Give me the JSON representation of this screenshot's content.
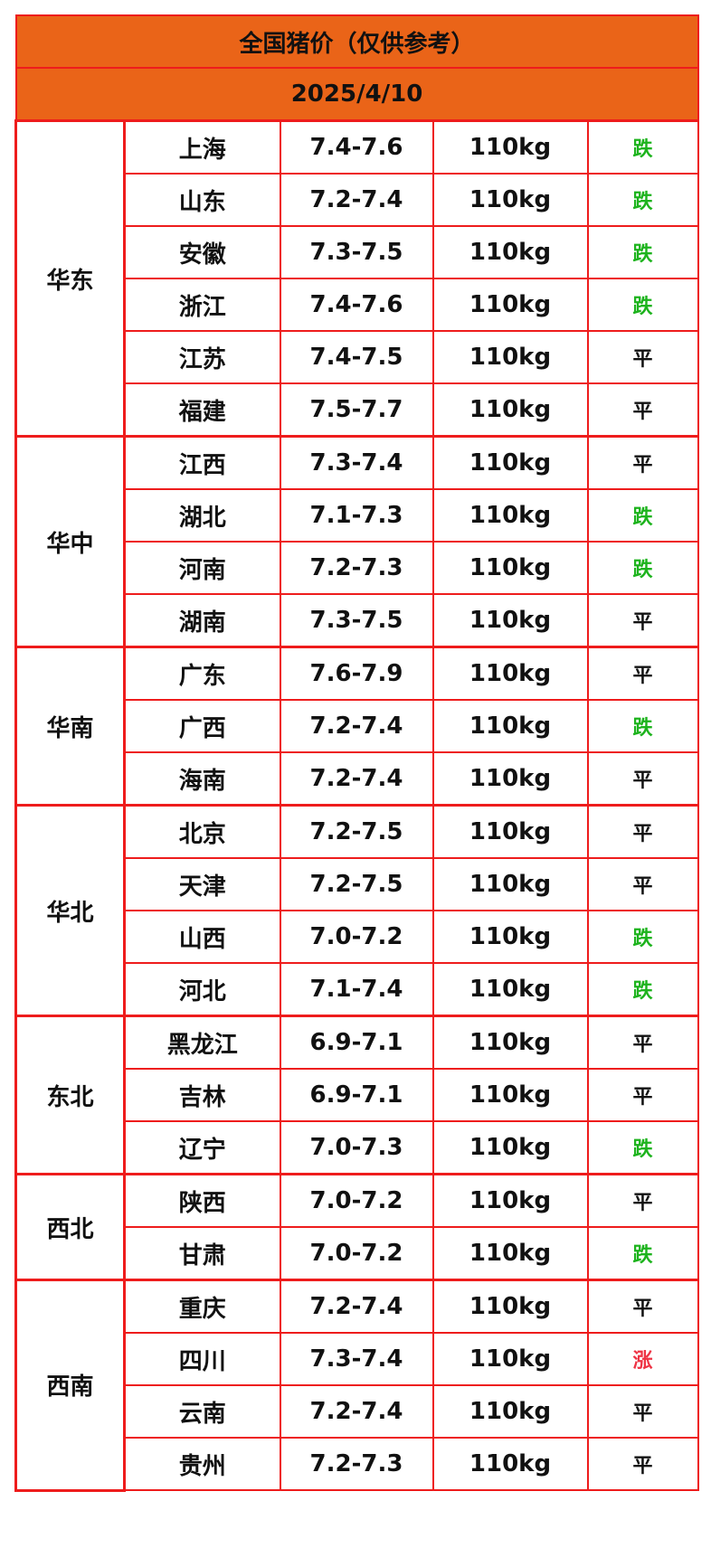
{
  "header": {
    "title": "全国猪价（仅供参考）",
    "date": "2025/4/10"
  },
  "regions": [
    {
      "name": "华东",
      "rows": [
        {
          "province": "上海",
          "price": "7.4-7.6",
          "weight": "110kg",
          "trend": "跌",
          "color": "#1db31d"
        },
        {
          "province": "山东",
          "price": "7.2-7.4",
          "weight": "110kg",
          "trend": "跌",
          "color": "#1db31d"
        },
        {
          "province": "安徽",
          "price": "7.3-7.5",
          "weight": "110kg",
          "trend": "跌",
          "color": "#1db31d"
        },
        {
          "province": "浙江",
          "price": "7.4-7.6",
          "weight": "110kg",
          "trend": "跌",
          "color": "#1db31d"
        },
        {
          "province": "江苏",
          "price": "7.4-7.5",
          "weight": "110kg",
          "trend": "平",
          "color": "#111111"
        },
        {
          "province": "福建",
          "price": "7.5-7.7",
          "weight": "110kg",
          "trend": "平",
          "color": "#111111"
        }
      ]
    },
    {
      "name": "华中",
      "rows": [
        {
          "province": "江西",
          "price": "7.3-7.4",
          "weight": "110kg",
          "trend": "平",
          "color": "#111111"
        },
        {
          "province": "湖北",
          "price": "7.1-7.3",
          "weight": "110kg",
          "trend": "跌",
          "color": "#1db31d"
        },
        {
          "province": "河南",
          "price": "7.2-7.3",
          "weight": "110kg",
          "trend": "跌",
          "color": "#1db31d"
        },
        {
          "province": "湖南",
          "price": "7.3-7.5",
          "weight": "110kg",
          "trend": "平",
          "color": "#111111"
        }
      ]
    },
    {
      "name": "华南",
      "rows": [
        {
          "province": "广东",
          "price": "7.6-7.9",
          "weight": "110kg",
          "trend": "平",
          "color": "#111111"
        },
        {
          "province": "广西",
          "price": "7.2-7.4",
          "weight": "110kg",
          "trend": "跌",
          "color": "#1db31d"
        },
        {
          "province": "海南",
          "price": "7.2-7.4",
          "weight": "110kg",
          "trend": "平",
          "color": "#111111"
        }
      ]
    },
    {
      "name": "华北",
      "rows": [
        {
          "province": "北京",
          "price": "7.2-7.5",
          "weight": "110kg",
          "trend": "平",
          "color": "#111111"
        },
        {
          "province": "天津",
          "price": "7.2-7.5",
          "weight": "110kg",
          "trend": "平",
          "color": "#111111"
        },
        {
          "province": "山西",
          "price": "7.0-7.2",
          "weight": "110kg",
          "trend": "跌",
          "color": "#1db31d"
        },
        {
          "province": "河北",
          "price": "7.1-7.4",
          "weight": "110kg",
          "trend": "跌",
          "color": "#1db31d"
        }
      ]
    },
    {
      "name": "东北",
      "rows": [
        {
          "province": "黑龙江",
          "price": "6.9-7.1",
          "weight": "110kg",
          "trend": "平",
          "color": "#111111"
        },
        {
          "province": "吉林",
          "price": "6.9-7.1",
          "weight": "110kg",
          "trend": "平",
          "color": "#111111"
        },
        {
          "province": "辽宁",
          "price": "7.0-7.3",
          "weight": "110kg",
          "trend": "跌",
          "color": "#1db31d"
        }
      ]
    },
    {
      "name": "西北",
      "rows": [
        {
          "province": "陕西",
          "price": "7.0-7.2",
          "weight": "110kg",
          "trend": "平",
          "color": "#111111"
        },
        {
          "province": "甘肃",
          "price": "7.0-7.2",
          "weight": "110kg",
          "trend": "跌",
          "color": "#1db31d"
        }
      ]
    },
    {
      "name": "西南",
      "rows": [
        {
          "province": "重庆",
          "price": "7.2-7.4",
          "weight": "110kg",
          "trend": "平",
          "color": "#111111"
        },
        {
          "province": "四川",
          "price": "7.3-7.4",
          "weight": "110kg",
          "trend": "涨",
          "color": "#ee3344"
        },
        {
          "province": "云南",
          "price": "7.2-7.4",
          "weight": "110kg",
          "trend": "平",
          "color": "#111111"
        },
        {
          "province": "贵州",
          "price": "7.2-7.3",
          "weight": "110kg",
          "trend": "平",
          "color": "#111111"
        }
      ]
    }
  ]
}
